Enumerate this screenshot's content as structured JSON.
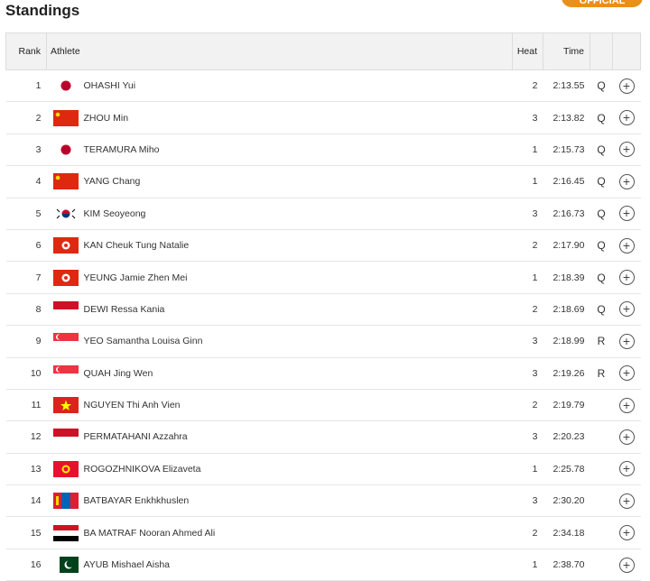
{
  "title": "Standings",
  "badge": "OFFICIAL",
  "columns": {
    "rank": "Rank",
    "athlete": "Athlete",
    "heat": "Heat",
    "time": "Time"
  },
  "rows": [
    {
      "rank": "1",
      "flag": "JPN",
      "name": "OHASHI Yui",
      "heat": "2",
      "time": "2:13.55",
      "q": "Q"
    },
    {
      "rank": "2",
      "flag": "CHN",
      "name": "ZHOU Min",
      "heat": "3",
      "time": "2:13.82",
      "q": "Q"
    },
    {
      "rank": "3",
      "flag": "JPN",
      "name": "TERAMURA Miho",
      "heat": "1",
      "time": "2:15.73",
      "q": "Q"
    },
    {
      "rank": "4",
      "flag": "CHN",
      "name": "YANG Chang",
      "heat": "1",
      "time": "2:16.45",
      "q": "Q"
    },
    {
      "rank": "5",
      "flag": "KOR",
      "name": "KIM Seoyeong",
      "heat": "3",
      "time": "2:16.73",
      "q": "Q"
    },
    {
      "rank": "6",
      "flag": "HKG",
      "name": "KAN Cheuk Tung Natalie",
      "heat": "2",
      "time": "2:17.90",
      "q": "Q"
    },
    {
      "rank": "7",
      "flag": "HKG",
      "name": "YEUNG Jamie Zhen Mei",
      "heat": "1",
      "time": "2:18.39",
      "q": "Q"
    },
    {
      "rank": "8",
      "flag": "INA",
      "name": "DEWI Ressa Kania",
      "heat": "2",
      "time": "2:18.69",
      "q": "Q"
    },
    {
      "rank": "9",
      "flag": "SGP",
      "name": "YEO Samantha Louisa Ginn",
      "heat": "3",
      "time": "2:18.99",
      "q": "R"
    },
    {
      "rank": "10",
      "flag": "SGP",
      "name": "QUAH Jing Wen",
      "heat": "3",
      "time": "2:19.26",
      "q": "R"
    },
    {
      "rank": "11",
      "flag": "VIE",
      "name": "NGUYEN Thi Anh Vien",
      "heat": "2",
      "time": "2:19.79",
      "q": ""
    },
    {
      "rank": "12",
      "flag": "INA",
      "name": "PERMATAHANI Azzahra",
      "heat": "3",
      "time": "2:20.23",
      "q": ""
    },
    {
      "rank": "13",
      "flag": "KGZ",
      "name": "ROGOZHNIKOVA Elizaveta",
      "heat": "1",
      "time": "2:25.78",
      "q": ""
    },
    {
      "rank": "14",
      "flag": "MGL",
      "name": "BATBAYAR Enkhkhuslen",
      "heat": "3",
      "time": "2:30.20",
      "q": ""
    },
    {
      "rank": "15",
      "flag": "YEM",
      "name": "BA MATRAF Nooran Ahmed Ali",
      "heat": "2",
      "time": "2:34.18",
      "q": ""
    },
    {
      "rank": "16",
      "flag": "PAK",
      "name": "AYUB Mishael Aisha",
      "heat": "1",
      "time": "2:38.70",
      "q": ""
    }
  ],
  "colors": {
    "accent": "#e8901a"
  }
}
